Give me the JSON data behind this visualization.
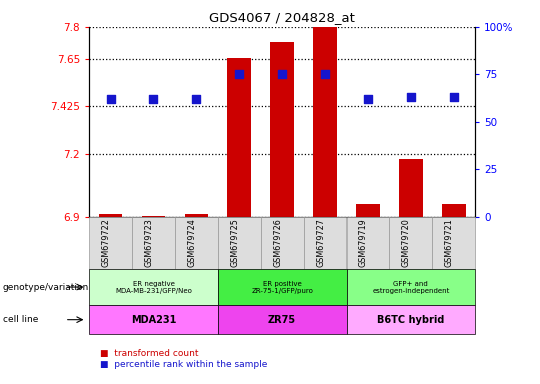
{
  "title": "GDS4067 / 204828_at",
  "samples": [
    "GSM679722",
    "GSM679723",
    "GSM679724",
    "GSM679725",
    "GSM679726",
    "GSM679727",
    "GSM679719",
    "GSM679720",
    "GSM679721"
  ],
  "bar_values": [
    6.915,
    6.905,
    6.915,
    7.655,
    7.73,
    7.8,
    6.96,
    7.175,
    6.96
  ],
  "dot_values": [
    62,
    62,
    62,
    75,
    75,
    75,
    62,
    63,
    63
  ],
  "ylim": [
    6.9,
    7.8
  ],
  "yticks_left": [
    6.9,
    7.2,
    7.425,
    7.65,
    7.8
  ],
  "yticks_right": [
    0,
    25,
    50,
    75,
    100
  ],
  "bar_color": "#CC0000",
  "dot_color": "#1515CC",
  "dot_size": 28,
  "groups": [
    {
      "label": "ER negative\nMDA-MB-231/GFP/Neo",
      "span": [
        0,
        3
      ],
      "color": "#CCFFCC"
    },
    {
      "label": "ER positive\nZR-75-1/GFP/puro",
      "span": [
        3,
        6
      ],
      "color": "#44EE44"
    },
    {
      "label": "GFP+ and\nestrogen-independent",
      "span": [
        6,
        9
      ],
      "color": "#88FF88"
    }
  ],
  "cell_lines": [
    {
      "label": "MDA231",
      "span": [
        0,
        3
      ],
      "color": "#FF77FF"
    },
    {
      "label": "ZR75",
      "span": [
        3,
        6
      ],
      "color": "#EE44EE"
    },
    {
      "label": "B6TC hybrid",
      "span": [
        6,
        9
      ],
      "color": "#FFAAFF"
    }
  ],
  "row_labels": [
    "genotype/variation",
    "cell line"
  ],
  "legend": [
    {
      "color": "#CC0000",
      "label": "transformed count"
    },
    {
      "color": "#1515CC",
      "label": "percentile rank within the sample"
    }
  ],
  "gridline_style": "dotted",
  "gridline_color": "black",
  "bar_width": 0.55,
  "col_bg_color": "#DDDDDD",
  "col_edge_color": "#999999"
}
